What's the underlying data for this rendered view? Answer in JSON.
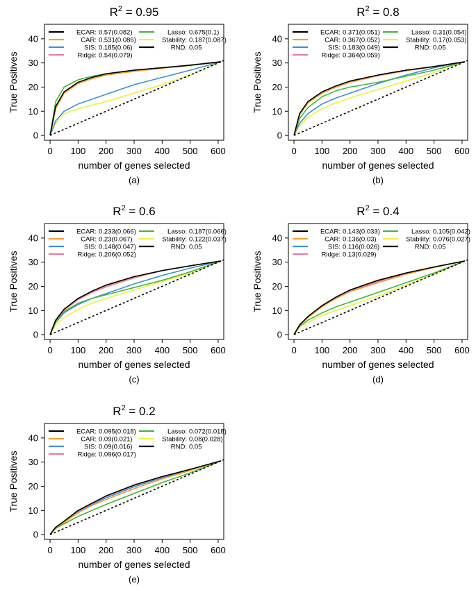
{
  "figure": {
    "xlabel": "number of genes selected",
    "ylabel": "True Positives",
    "xticks": [
      0,
      100,
      200,
      300,
      400,
      500,
      600
    ],
    "yticks": [
      0,
      10,
      20,
      30,
      40
    ],
    "xlim": [
      -20,
      620
    ],
    "ylim": [
      -2,
      46
    ]
  },
  "colors": {
    "ECAR": "#000000",
    "CAR": "#f5a030",
    "SIS": "#3c8fd8",
    "Ridge": "#e87aa8",
    "Lasso": "#3fb83f",
    "Stability": "#f0f03c",
    "RND": "#000000"
  },
  "chart_data": [
    {
      "type": "line",
      "panel": "(a)",
      "title_base": "R",
      "title_exp": "2",
      "title_rest": " = 0.95",
      "xlabel": "number of genes selected",
      "ylabel": "True Positives",
      "xlim": [
        -20,
        620
      ],
      "ylim": [
        -2,
        46
      ],
      "legend": [
        {
          "name": "ECAR",
          "value": "0.57(0.082)"
        },
        {
          "name": "CAR",
          "value": "0.531(0.086)"
        },
        {
          "name": "SIS",
          "value": "0.185(0.06)"
        },
        {
          "name": "Ridge",
          "value": "0.54(0.079)"
        },
        {
          "name": "Lasso",
          "value": "0.675(0.1)"
        },
        {
          "name": "Stability",
          "value": "0.187(0.087)"
        },
        {
          "name": "RND",
          "value": "0.05"
        }
      ],
      "x": [
        0,
        20,
        50,
        100,
        150,
        200,
        300,
        400,
        500,
        610
      ],
      "series": [
        {
          "name": "ECAR",
          "values": [
            0,
            12,
            18,
            22,
            24,
            25.5,
            27,
            28,
            29,
            30.5
          ]
        },
        {
          "name": "CAR",
          "values": [
            0,
            11,
            17.5,
            21.5,
            23.5,
            25,
            26.5,
            27.8,
            29,
            30.5
          ]
        },
        {
          "name": "Ridge",
          "values": [
            0,
            11.5,
            17.5,
            21.5,
            23.5,
            25,
            26.7,
            27.9,
            29,
            30.5
          ]
        },
        {
          "name": "SIS",
          "values": [
            0,
            6,
            10,
            13,
            15,
            17,
            21,
            24,
            27,
            30.5
          ]
        },
        {
          "name": "Lasso",
          "values": [
            0,
            14,
            20,
            23,
            24.5,
            25.5,
            27,
            28,
            29.2,
            30.5
          ]
        },
        {
          "name": "Stability",
          "values": [
            0,
            5,
            9,
            11,
            12.5,
            14,
            17.5,
            21,
            25,
            30.5
          ]
        },
        {
          "name": "RND",
          "x": [
            0,
            620
          ],
          "values": [
            0,
            31
          ],
          "dashed": true
        }
      ]
    },
    {
      "type": "line",
      "panel": "(b)",
      "title_base": "R",
      "title_exp": "2",
      "title_rest": " = 0.8",
      "xlabel": "number of genes selected",
      "ylabel": "True Positives",
      "xlim": [
        -20,
        620
      ],
      "ylim": [
        -2,
        46
      ],
      "legend": [
        {
          "name": "ECAR",
          "value": "0.371(0.051)"
        },
        {
          "name": "CAR",
          "value": "0.367(0.052)"
        },
        {
          "name": "SIS",
          "value": "0.183(0.049)"
        },
        {
          "name": "Ridge",
          "value": "0.364(0.059)"
        },
        {
          "name": "Lasso",
          "value": "0.31(0.054)"
        },
        {
          "name": "Stability",
          "value": "0.17(0.053)"
        },
        {
          "name": "RND",
          "value": "0.05"
        }
      ],
      "x": [
        0,
        20,
        50,
        100,
        150,
        200,
        300,
        400,
        500,
        610
      ],
      "series": [
        {
          "name": "ECAR",
          "values": [
            0,
            9,
            14,
            18,
            20.5,
            22.5,
            25,
            27,
            28.5,
            30.5
          ]
        },
        {
          "name": "CAR",
          "values": [
            0,
            8.5,
            13.5,
            17.5,
            20,
            22,
            24.8,
            26.8,
            28.5,
            30.5
          ]
        },
        {
          "name": "Ridge",
          "values": [
            0,
            8.5,
            13.5,
            17.5,
            20,
            22,
            24.7,
            26.7,
            28.5,
            30.5
          ]
        },
        {
          "name": "SIS",
          "values": [
            0,
            5,
            9,
            13,
            15.5,
            17.5,
            21.5,
            25,
            28,
            30.5
          ]
        },
        {
          "name": "Lasso",
          "values": [
            0,
            7,
            11.5,
            16,
            18.5,
            20,
            22,
            24.5,
            27,
            30.5
          ]
        },
        {
          "name": "Stability",
          "values": [
            0,
            4,
            7.5,
            11,
            13.5,
            15.5,
            19,
            22.5,
            26,
            30.5
          ]
        },
        {
          "name": "RND",
          "x": [
            0,
            620
          ],
          "values": [
            0,
            31
          ],
          "dashed": true
        }
      ]
    },
    {
      "type": "line",
      "panel": "(c)",
      "title_base": "R",
      "title_exp": "2",
      "title_rest": " = 0.6",
      "xlabel": "number of genes selected",
      "ylabel": "True Positives",
      "xlim": [
        -20,
        620
      ],
      "ylim": [
        -2,
        46
      ],
      "legend": [
        {
          "name": "ECAR",
          "value": "0.233(0.066)"
        },
        {
          "name": "CAR",
          "value": "0.23(0.067)"
        },
        {
          "name": "SIS",
          "value": "0.148(0.047)"
        },
        {
          "name": "Ridge",
          "value": "0.206(0.052)"
        },
        {
          "name": "Lasso",
          "value": "0.187(0.066)"
        },
        {
          "name": "Stability",
          "value": "0.122(0.037)"
        },
        {
          "name": "RND",
          "value": "0.05"
        }
      ],
      "x": [
        0,
        20,
        50,
        100,
        150,
        200,
        300,
        400,
        500,
        610
      ],
      "series": [
        {
          "name": "ECAR",
          "values": [
            0,
            6,
            10.5,
            15,
            18,
            20.5,
            24,
            26.5,
            28.5,
            30.5
          ]
        },
        {
          "name": "CAR",
          "values": [
            0,
            6,
            10.3,
            15,
            18,
            20.3,
            23.8,
            26.5,
            28.5,
            30.5
          ]
        },
        {
          "name": "Ridge",
          "values": [
            0,
            6,
            10,
            14.5,
            17.5,
            19.8,
            23.5,
            26.5,
            28.5,
            30.5
          ]
        },
        {
          "name": "SIS",
          "values": [
            0,
            5,
            9,
            12.5,
            15,
            17,
            21,
            24.5,
            27.5,
            30.5
          ]
        },
        {
          "name": "Lasso",
          "values": [
            0,
            5.5,
            9.5,
            13,
            15,
            16.5,
            19.5,
            22.5,
            26,
            30.5
          ]
        },
        {
          "name": "Stability",
          "values": [
            0,
            4,
            7,
            10.5,
            13,
            15,
            18.5,
            22,
            25.5,
            30.5
          ]
        },
        {
          "name": "RND",
          "x": [
            0,
            620
          ],
          "values": [
            0,
            31
          ],
          "dashed": true
        }
      ]
    },
    {
      "type": "line",
      "panel": "(d)",
      "title_base": "R",
      "title_exp": "2",
      "title_rest": " = 0.4",
      "xlabel": "number of genes selected",
      "ylabel": "True Positives",
      "xlim": [
        -20,
        620
      ],
      "ylim": [
        -2,
        46
      ],
      "legend": [
        {
          "name": "ECAR",
          "value": "0.143(0.033)"
        },
        {
          "name": "CAR",
          "value": "0.136(0.03)"
        },
        {
          "name": "SIS",
          "value": "0.116(0.026)"
        },
        {
          "name": "Ridge",
          "value": "0.13(0.029)"
        },
        {
          "name": "Lasso",
          "value": "0.105(0.042)"
        },
        {
          "name": "Stability",
          "value": "0.076(0.027)"
        },
        {
          "name": "RND",
          "value": "0.05"
        }
      ],
      "x": [
        0,
        20,
        50,
        100,
        150,
        200,
        300,
        400,
        500,
        610
      ],
      "series": [
        {
          "name": "ECAR",
          "values": [
            0,
            4,
            7.5,
            12,
            15.5,
            18.5,
            22.5,
            25.5,
            28,
            30.5
          ]
        },
        {
          "name": "CAR",
          "values": [
            0,
            4,
            7,
            11.5,
            15,
            17.8,
            21.5,
            25,
            27.8,
            30.5
          ]
        },
        {
          "name": "Ridge",
          "values": [
            0,
            4,
            7.2,
            11.7,
            15.2,
            18,
            22,
            25.2,
            27.9,
            30.5
          ]
        },
        {
          "name": "SIS",
          "values": [
            0,
            4,
            7.3,
            12,
            15.5,
            18.3,
            22.3,
            25.5,
            28,
            30.5
          ]
        },
        {
          "name": "Lasso",
          "values": [
            0,
            3.5,
            6,
            9,
            11.5,
            13.5,
            17.5,
            21.5,
            25.5,
            30.5
          ]
        },
        {
          "name": "Stability",
          "values": [
            0,
            3,
            5,
            8,
            10,
            12,
            16,
            20.5,
            25,
            30.5
          ]
        },
        {
          "name": "RND",
          "x": [
            0,
            620
          ],
          "values": [
            0,
            31
          ],
          "dashed": true
        }
      ]
    },
    {
      "type": "line",
      "panel": "(e)",
      "title_base": "R",
      "title_exp": "2",
      "title_rest": " = 0.2",
      "xlabel": "number of genes selected",
      "ylabel": "True Positives",
      "xlim": [
        -20,
        620
      ],
      "ylim": [
        -2,
        46
      ],
      "legend": [
        {
          "name": "ECAR",
          "value": "0.095(0.018)"
        },
        {
          "name": "CAR",
          "value": "0.09(0.021)"
        },
        {
          "name": "SIS",
          "value": "0.09(0.016)"
        },
        {
          "name": "Ridge",
          "value": "0.096(0.017)"
        },
        {
          "name": "Lasso",
          "value": "0.072(0.018)"
        },
        {
          "name": "Stability",
          "value": "0.08(0.028)"
        },
        {
          "name": "RND",
          "value": "0.05"
        }
      ],
      "x": [
        0,
        20,
        50,
        100,
        150,
        200,
        300,
        400,
        500,
        610
      ],
      "series": [
        {
          "name": "ECAR",
          "values": [
            0,
            3,
            5.5,
            10,
            13,
            16,
            20.5,
            24,
            27,
            30.5
          ]
        },
        {
          "name": "CAR",
          "values": [
            0,
            2.8,
            5,
            9,
            12,
            14.5,
            19,
            23,
            26.5,
            30.5
          ]
        },
        {
          "name": "Ridge",
          "values": [
            0,
            3,
            5.3,
            9.8,
            12.8,
            15.8,
            20.3,
            24,
            27,
            30.5
          ]
        },
        {
          "name": "SIS",
          "values": [
            0,
            3,
            5.2,
            9.5,
            12.5,
            15.2,
            19.8,
            23.5,
            26.8,
            30.5
          ]
        },
        {
          "name": "Lasso",
          "values": [
            0,
            2.5,
            4.5,
            7.5,
            10,
            12.5,
            17,
            21.5,
            25.5,
            30.5
          ]
        },
        {
          "name": "Stability",
          "values": [
            0,
            2.5,
            4.3,
            7.5,
            10,
            12.5,
            17,
            21.5,
            25.5,
            30.5
          ]
        },
        {
          "name": "RND",
          "x": [
            0,
            620
          ],
          "values": [
            0,
            31
          ],
          "dashed": true
        }
      ]
    }
  ]
}
